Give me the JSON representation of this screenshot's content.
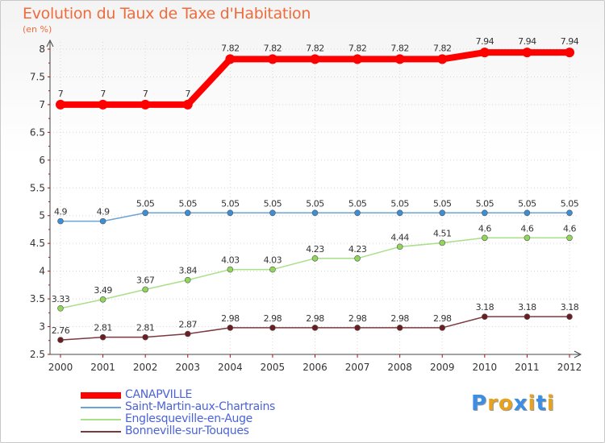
{
  "header": {
    "title": "Evolution du Taux de Taxe d'Habitation",
    "subtitle": "(en %)"
  },
  "chart_data": {
    "type": "line",
    "x": [
      "2000",
      "2001",
      "2002",
      "2003",
      "2004",
      "2005",
      "2006",
      "2007",
      "2008",
      "2009",
      "2010",
      "2011",
      "2012"
    ],
    "ylim": [
      2.5,
      8
    ],
    "yticks": [
      "2.5",
      "3",
      "3.5",
      "4",
      "4.5",
      "5",
      "5.5",
      "6",
      "6.5",
      "7",
      "7.5",
      "8"
    ],
    "grid": true,
    "legend": "bottom-left",
    "series": [
      {
        "name": "CANAPVILLE",
        "color": "#ff0000",
        "values": [
          7,
          7,
          7,
          7,
          7.82,
          7.82,
          7.82,
          7.82,
          7.82,
          7.82,
          7.94,
          7.94,
          7.94
        ],
        "labels": [
          "7",
          "7",
          "7",
          "7",
          "7.82",
          "7.82",
          "7.82",
          "7.82",
          "7.82",
          "7.82",
          "7.94",
          "7.94",
          "7.94"
        ]
      },
      {
        "name": "Saint-Martin-aux-Chartrains",
        "color": "#3b8fd6",
        "values": [
          4.9,
          4.9,
          5.05,
          5.05,
          5.05,
          5.05,
          5.05,
          5.05,
          5.05,
          5.05,
          5.05,
          5.05,
          5.05
        ],
        "labels": [
          "4.9",
          "4.9",
          "5.05",
          "5.05",
          "5.05",
          "5.05",
          "5.05",
          "5.05",
          "5.05",
          "5.05",
          "5.05",
          "5.05",
          "5.05"
        ]
      },
      {
        "name": "Englesqueville-en-Auge",
        "color": "#8fd65a",
        "values": [
          3.33,
          3.49,
          3.67,
          3.84,
          4.03,
          4.03,
          4.23,
          4.23,
          4.44,
          4.51,
          4.6,
          4.6,
          4.6
        ],
        "labels": [
          "3.33",
          "3.49",
          "3.67",
          "3.84",
          "4.03",
          "4.03",
          "4.23",
          "4.23",
          "4.44",
          "4.51",
          "4.6",
          "4.6",
          "4.6"
        ]
      },
      {
        "name": "Bonneville-sur-Touques",
        "color": "#6b1e22",
        "values": [
          2.76,
          2.81,
          2.81,
          2.87,
          2.98,
          2.98,
          2.98,
          2.98,
          2.98,
          2.98,
          3.18,
          3.18,
          3.18
        ],
        "labels": [
          "2.76",
          "2.81",
          "2.81",
          "2.87",
          "2.98",
          "2.98",
          "2.98",
          "2.98",
          "2.98",
          "2.98",
          "3.18",
          "3.18",
          "3.18"
        ]
      }
    ]
  },
  "branding": {
    "logo_letters": [
      "P",
      "r",
      "o",
      "x",
      "i",
      "t",
      "i"
    ],
    "logo_colors": [
      "#3a8ee6",
      "#e8a21c",
      "#e8a21c",
      "#3a8ee6",
      "#e8a21c",
      "#3a8ee6",
      "#e8a21c"
    ]
  }
}
